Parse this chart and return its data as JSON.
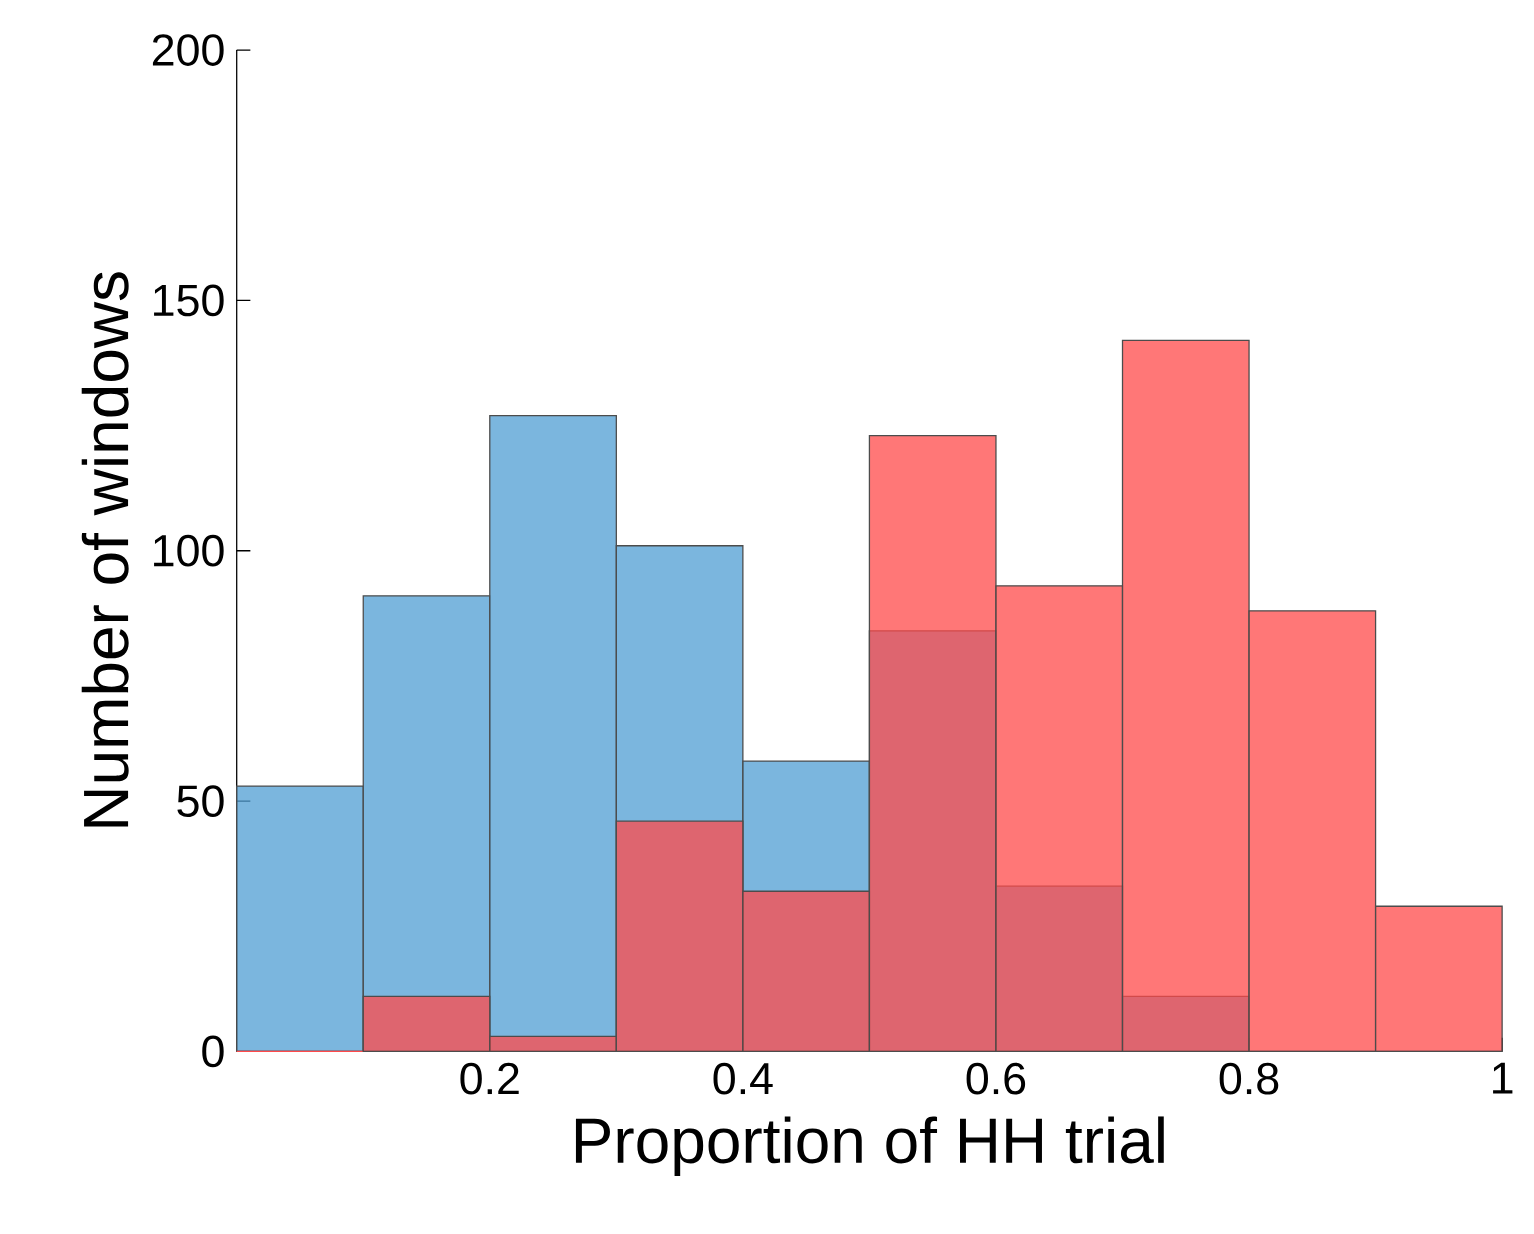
{
  "chart_data": {
    "type": "histogram",
    "xlabel": "Proportion of HH trial",
    "ylabel": "Number of windows",
    "bins": [
      0,
      0.1,
      0.2,
      0.3,
      0.4,
      0.5,
      0.6,
      0.7,
      0.8,
      0.9,
      1
    ],
    "series": [
      {
        "color": "#4f9ed3",
        "values": [
          53,
          91,
          127,
          101,
          58,
          84,
          33,
          11,
          0,
          0
        ]
      },
      {
        "color": "#ff4a4a",
        "values": [
          0,
          11,
          3,
          46,
          32,
          123,
          93,
          142,
          88,
          29
        ]
      }
    ],
    "xlim": [
      0,
      1
    ],
    "ylim": [
      0,
      200
    ],
    "xticks": [
      0.2,
      0.4,
      0.6,
      0.8,
      1
    ],
    "yticks": [
      0,
      50,
      100,
      150,
      200
    ],
    "grid": false
  }
}
